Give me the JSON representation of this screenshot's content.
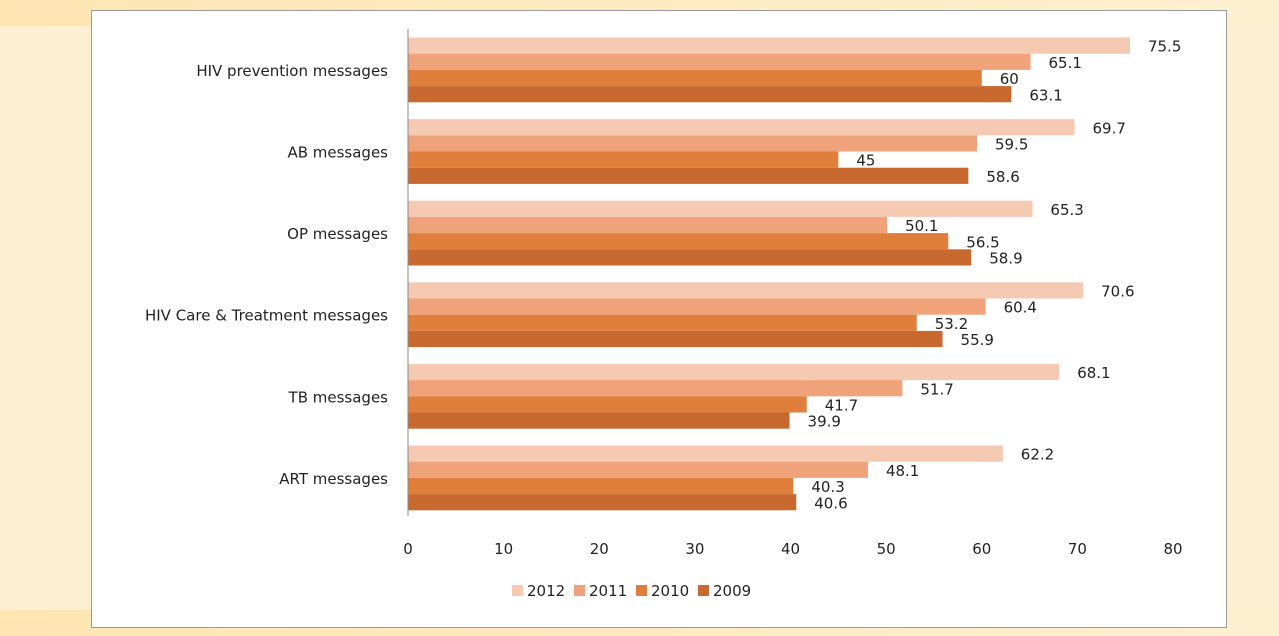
{
  "chart_data": {
    "type": "bar",
    "orientation": "horizontal",
    "categories": [
      "HIV prevention messages",
      "AB messages",
      "OP messages",
      "HIV Care & Treatment messages",
      "TB messages",
      "ART messages"
    ],
    "series": [
      {
        "name": "2012",
        "color": "#f5c9b2",
        "values": [
          75.5,
          69.7,
          65.3,
          70.6,
          68.1,
          62.2
        ]
      },
      {
        "name": "2011",
        "color": "#f0a27a",
        "values": [
          65.1,
          59.5,
          50.1,
          60.4,
          51.7,
          48.1
        ]
      },
      {
        "name": "2010",
        "color": "#e07f3b",
        "values": [
          60,
          45,
          56.5,
          53.2,
          41.7,
          40.3
        ]
      },
      {
        "name": "2009",
        "color": "#c86a30",
        "values": [
          63.1,
          58.6,
          58.9,
          55.9,
          39.9,
          40.6
        ]
      }
    ],
    "data_labels": [
      [
        "75.5",
        "65.1",
        "60",
        "63.1"
      ],
      [
        "69.7",
        "59.5",
        "45",
        "58.6"
      ],
      [
        "65.3",
        "50.1",
        "56.5",
        "58.9"
      ],
      [
        "70.6",
        "60.4",
        "53.2",
        "55.9"
      ],
      [
        "68.1",
        "51.7",
        "41.7",
        "39.9"
      ],
      [
        "62.2",
        "48.1",
        "40.3",
        "40.6"
      ]
    ],
    "xlim": [
      0,
      80
    ],
    "xticks": [
      "0",
      "10",
      "20",
      "30",
      "40",
      "50",
      "60",
      "70",
      "80"
    ],
    "title": "",
    "xlabel": "",
    "ylabel": "",
    "grid": false,
    "legend": {
      "position": "bottom",
      "entries": [
        "2012",
        "2011",
        "2010",
        "2009"
      ]
    }
  }
}
